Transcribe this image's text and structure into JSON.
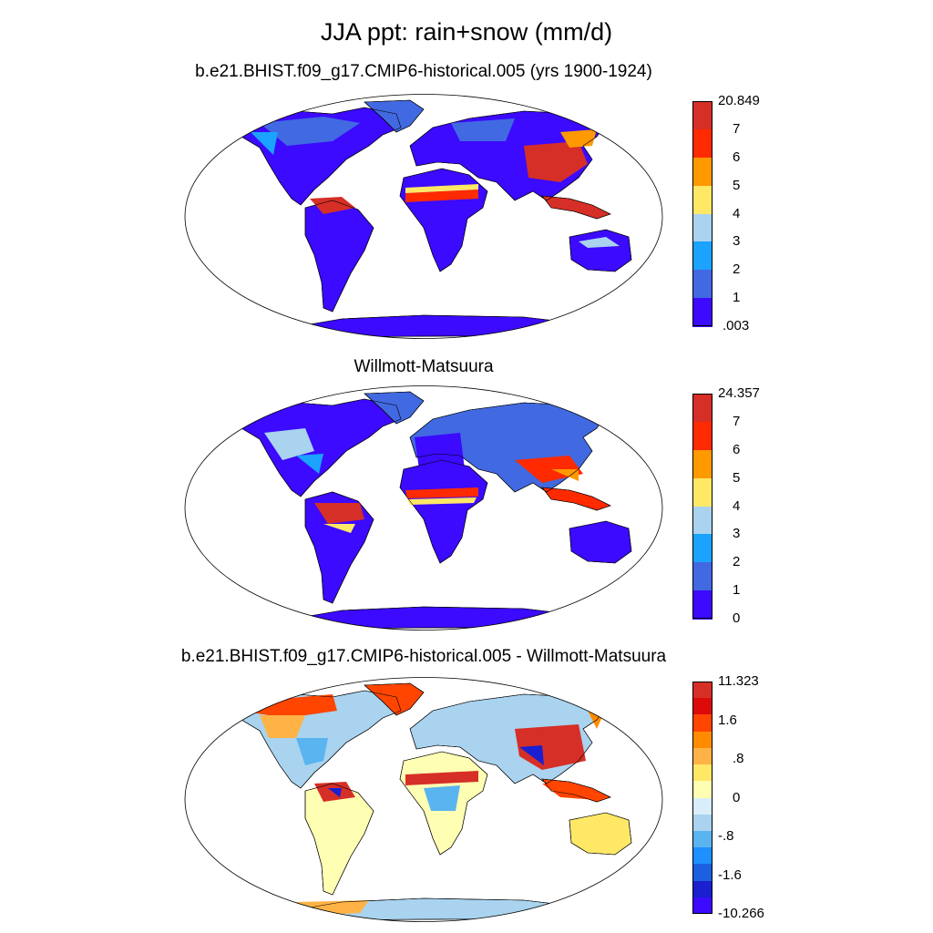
{
  "title": "JJA ppt: rain+snow (mm/d)",
  "panels": [
    {
      "id": "model",
      "title": "b.e21.BHIST.f09_g17.CMIP6-historical.005 (yrs 1900-1924)",
      "colorbar": {
        "labels": [
          "20.849",
          "7",
          "6",
          "5",
          "4",
          "3",
          "2",
          "1",
          ".003"
        ],
        "colors": [
          "#d62f27",
          "#ff2a00",
          "#ff9900",
          "#ffe866",
          "#a9d3ef",
          "#1aa3ff",
          "#4169e1",
          "#3b0aff"
        ]
      }
    },
    {
      "id": "obs",
      "title": "Willmott-Matsuura",
      "colorbar": {
        "labels": [
          "24.357",
          "7",
          "6",
          "5",
          "4",
          "3",
          "2",
          "1",
          "0"
        ],
        "colors": [
          "#d62f27",
          "#ff2a00",
          "#ff9900",
          "#ffe866",
          "#a9d3ef",
          "#1aa3ff",
          "#4169e1",
          "#3b0aff"
        ]
      }
    },
    {
      "id": "diff",
      "title": "b.e21.BHIST.f09_g17.CMIP6-historical.005 - Willmott-Matsuura",
      "colorbar": {
        "labels": [
          "11.323",
          "1.6",
          ".8",
          "0",
          "-.8",
          "-1.6",
          "-10.266"
        ],
        "colors": [
          "#d62f27",
          "#dd0a0a",
          "#ff4500",
          "#ff8c00",
          "#ffb347",
          "#ffe866",
          "#ffffb3",
          "#d9eefb",
          "#a9d3ef",
          "#5ab4f0",
          "#1e90ff",
          "#1c5fe0",
          "#1a1fd0",
          "#3b0aff"
        ]
      }
    }
  ]
}
